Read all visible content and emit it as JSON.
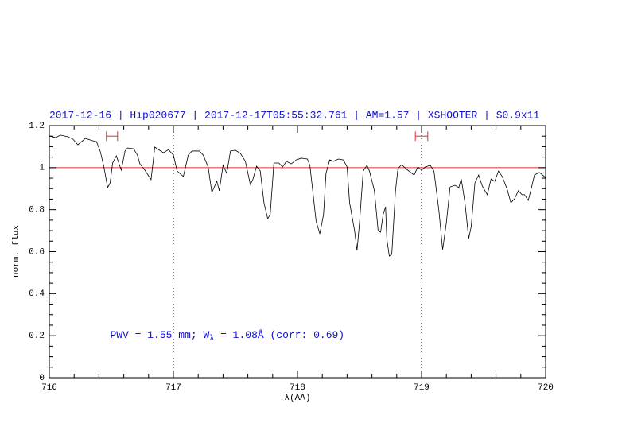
{
  "chart_data": {
    "type": "line",
    "title": "2017-12-16 | Hip020677 | 2017-12-17T05:55:32.761 | AM=1.57 | XSHOOTER | S0.9x11",
    "xlabel": "λ(AA)",
    "ylabel": "norm. flux",
    "xlim": [
      716,
      720
    ],
    "ylim": [
      0,
      1.2
    ],
    "xticks": [
      716,
      717,
      718,
      719,
      720
    ],
    "yticks": [
      0,
      0.2,
      0.4,
      0.6,
      0.8,
      1,
      1.2
    ],
    "xticks_minor": [
      716.2,
      716.4,
      716.6,
      716.8,
      717.2,
      717.4,
      717.6,
      717.8,
      718.2,
      718.4,
      718.6,
      718.8,
      719.2,
      719.4,
      719.6,
      719.8
    ],
    "yticks_minor": [
      0.05,
      0.1,
      0.15,
      0.25,
      0.3,
      0.35,
      0.45,
      0.5,
      0.55,
      0.65,
      0.7,
      0.75,
      0.85,
      0.9,
      0.95,
      1.05,
      1.1,
      1.15
    ],
    "hline": {
      "y": 1,
      "color": "#e03030"
    },
    "vlines": [
      717,
      719
    ],
    "ranges": [
      {
        "x": [
          716.46,
          716.55
        ],
        "y": 1.15,
        "color": "#e03030"
      },
      {
        "x": [
          718.95,
          719.05
        ],
        "y": 1.15,
        "color": "#e03030"
      }
    ],
    "annotation": {
      "x": 716.49,
      "y": 0.2,
      "parts": [
        "PWV = 1.55 mm; W",
        "λ",
        " = 1.08Å (corr: 0.69)"
      ]
    },
    "x": [
      716.0,
      716.05,
      716.09,
      716.15,
      716.19,
      716.23,
      716.26,
      716.29,
      716.35,
      716.38,
      716.41,
      716.44,
      716.47,
      716.49,
      716.51,
      716.54,
      716.56,
      716.58,
      716.61,
      716.63,
      716.68,
      716.71,
      716.73,
      716.77,
      716.82,
      716.85,
      716.88,
      716.92,
      716.96,
      717.0,
      717.03,
      717.08,
      717.12,
      717.15,
      717.21,
      717.24,
      717.28,
      717.31,
      717.35,
      717.37,
      717.4,
      717.43,
      717.46,
      717.5,
      717.54,
      717.58,
      717.62,
      717.64,
      717.67,
      717.7,
      717.73,
      717.76,
      717.78,
      717.81,
      717.85,
      717.88,
      717.91,
      717.95,
      717.99,
      718.03,
      718.08,
      718.1,
      718.13,
      718.15,
      718.18,
      718.21,
      718.23,
      718.26,
      718.29,
      718.33,
      718.37,
      718.4,
      718.42,
      718.46,
      718.48,
      718.5,
      718.53,
      718.56,
      718.58,
      718.62,
      718.65,
      718.67,
      718.69,
      718.71,
      718.72,
      718.74,
      718.76,
      718.79,
      718.81,
      718.84,
      718.88,
      718.94,
      718.97,
      719.0,
      719.03,
      719.07,
      719.1,
      719.14,
      719.17,
      719.2,
      719.23,
      719.27,
      719.3,
      719.32,
      719.35,
      719.38,
      719.4,
      719.43,
      719.46,
      719.49,
      719.53,
      719.56,
      719.59,
      719.62,
      719.65,
      719.69,
      719.72,
      719.75,
      719.78,
      719.81,
      719.83,
      719.86,
      719.88,
      719.91,
      719.95,
      719.99,
      720.0
    ],
    "series": [
      {
        "color": "#000000",
        "values": [
          1.151,
          1.143,
          1.155,
          1.147,
          1.136,
          1.109,
          1.124,
          1.139,
          1.128,
          1.124,
          1.079,
          1.003,
          0.905,
          0.927,
          1.022,
          1.056,
          1.022,
          0.988,
          1.079,
          1.094,
          1.09,
          1.06,
          1.018,
          0.988,
          0.943,
          1.098,
          1.086,
          1.071,
          1.086,
          1.06,
          0.984,
          0.958,
          1.06,
          1.079,
          1.079,
          1.06,
          1.003,
          0.882,
          0.935,
          0.89,
          1.011,
          0.973,
          1.079,
          1.083,
          1.068,
          1.03,
          0.92,
          0.943,
          1.007,
          0.984,
          0.833,
          0.757,
          0.776,
          1.022,
          1.022,
          1.003,
          1.03,
          1.018,
          1.037,
          1.045,
          1.041,
          1.011,
          0.852,
          0.746,
          0.685,
          0.776,
          0.973,
          1.037,
          1.03,
          1.041,
          1.037,
          1.003,
          0.833,
          0.7,
          0.606,
          0.738,
          0.984,
          1.011,
          0.984,
          0.89,
          0.7,
          0.693,
          0.776,
          0.814,
          0.662,
          0.579,
          0.587,
          0.89,
          0.996,
          1.014,
          0.992,
          0.965,
          1.003,
          0.988,
          1.003,
          1.011,
          0.984,
          0.795,
          0.609,
          0.738,
          0.908,
          0.916,
          0.905,
          0.946,
          0.833,
          0.662,
          0.719,
          0.927,
          0.965,
          0.912,
          0.871,
          0.946,
          0.935,
          0.984,
          0.958,
          0.897,
          0.833,
          0.852,
          0.89,
          0.871,
          0.871,
          0.844,
          0.89,
          0.965,
          0.977,
          0.958,
          0.946
        ]
      }
    ]
  }
}
